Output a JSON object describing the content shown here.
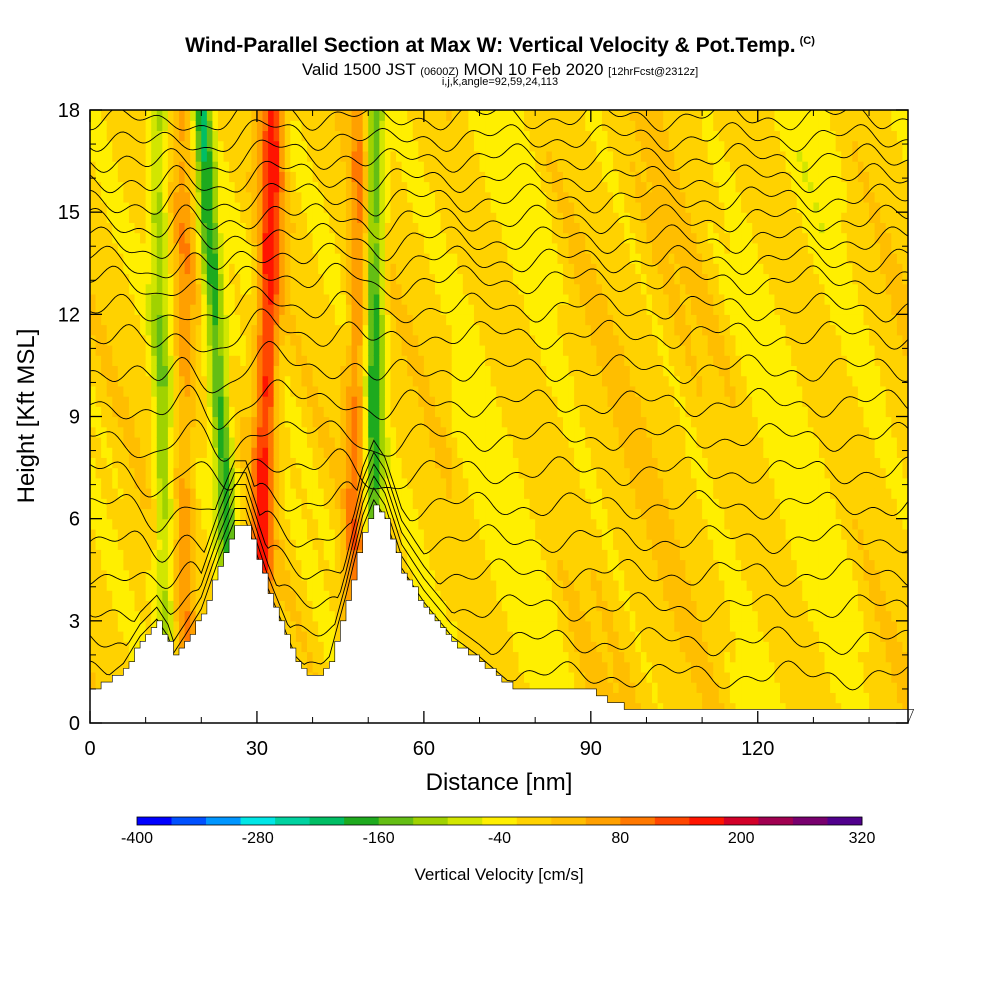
{
  "header": {
    "title": "Wind-Parallel Section at Max W: Vertical Velocity & Pot.Temp.",
    "title_mark": "(C)",
    "subtitle_a": "Valid 1500 JST",
    "subtitle_b": "(0600Z)",
    "subtitle_c": "MON 10 Feb 2020",
    "subtitle_d": "[12hrFcst@2312z]",
    "indices": "i,j,k,angle=92,59,24,113"
  },
  "chart_data": {
    "type": "heatmap",
    "title": "Wind-Parallel Section at Max W: Vertical Velocity & Pot.Temp.",
    "xlabel": "Distance [nm]",
    "ylabel": "Height [Kft MSL]",
    "xlim": [
      0,
      147
    ],
    "ylim": [
      0,
      18
    ],
    "x_ticks": [
      "0",
      "30",
      "60",
      "90",
      "120"
    ],
    "y_ticks": [
      "0",
      "3",
      "6",
      "9",
      "12",
      "15",
      "18"
    ],
    "colorbar": {
      "label": "Vertical Velocity [cm/s]",
      "tick_labels": [
        "-400",
        "-280",
        "-160",
        "-40",
        "80",
        "200",
        "320"
      ],
      "min": -400,
      "max": 320,
      "step": 40,
      "colors": [
        "#0000ff",
        "#0050ff",
        "#0096ff",
        "#00e6e6",
        "#00d2a0",
        "#00be64",
        "#1eaa1e",
        "#64be14",
        "#a0d200",
        "#d2e600",
        "#ffef00",
        "#ffd200",
        "#ffbe00",
        "#ffa000",
        "#ff7800",
        "#ff4600",
        "#ff1400",
        "#d20028",
        "#a00050",
        "#78006e",
        "#50008c"
      ]
    },
    "terrain_kft": [
      [
        0,
        1.0
      ],
      [
        3,
        1.2
      ],
      [
        6,
        1.6
      ],
      [
        9,
        2.4
      ],
      [
        12,
        2.9
      ],
      [
        14,
        2.4
      ],
      [
        15,
        1.9
      ],
      [
        17,
        2.4
      ],
      [
        20,
        3.2
      ],
      [
        23,
        4.6
      ],
      [
        26,
        5.8
      ],
      [
        28,
        5.8
      ],
      [
        30,
        4.8
      ],
      [
        32,
        3.8
      ],
      [
        35,
        2.6
      ],
      [
        37,
        1.8
      ],
      [
        40,
        1.3
      ],
      [
        43,
        1.8
      ],
      [
        46,
        3.6
      ],
      [
        49,
        5.6
      ],
      [
        51,
        6.4
      ],
      [
        53,
        5.9
      ],
      [
        56,
        4.4
      ],
      [
        60,
        3.4
      ],
      [
        65,
        2.4
      ],
      [
        70,
        1.8
      ],
      [
        75,
        1.1
      ],
      [
        80,
        1.0
      ],
      [
        90,
        0.9
      ],
      [
        95,
        0.5
      ],
      [
        100,
        0.3
      ],
      [
        147,
        0.3
      ]
    ],
    "updraft_cores": [
      {
        "x_base": 30,
        "x_top": 33,
        "peak_cm_s": 200
      },
      {
        "x_base": 47,
        "x_top": 49,
        "peak_cm_s": 120
      },
      {
        "x_base": 17,
        "x_top": 17,
        "peak_cm_s": 80
      }
    ],
    "downdraft_cores": [
      {
        "x_base": 27,
        "x_top": 20,
        "peak_cm_s": -160
      },
      {
        "x_base": 51,
        "x_top": 51,
        "peak_cm_s": -160
      },
      {
        "x_base": 14,
        "x_top": 12,
        "peak_cm_s": -80
      }
    ],
    "theta_contours_kft": [
      1.4,
      2.4,
      3.4,
      4.4,
      5.4,
      6.4,
      7.4,
      8.4,
      9.4,
      10.4,
      11.4,
      12.2,
      13.0,
      13.6,
      14.2,
      14.8,
      15.4,
      16.0,
      16.6,
      17.2,
      17.8
    ]
  }
}
